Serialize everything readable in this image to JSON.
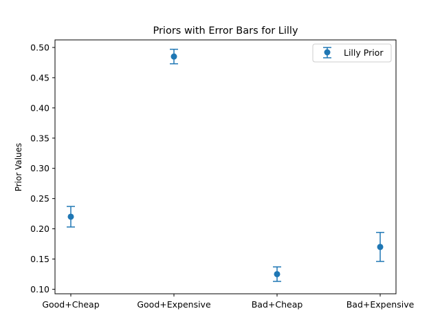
{
  "chart_data": {
    "type": "scatter",
    "title": "Priors with Error Bars for Lilly",
    "xlabel": "",
    "ylabel": "Prior Values",
    "categories": [
      "Good+Cheap",
      "Good+Expensive",
      "Bad+Cheap",
      "Bad+Expensive"
    ],
    "series": [
      {
        "name": "Lilly Prior",
        "values": [
          0.22,
          0.485,
          0.125,
          0.17
        ],
        "error_lower": [
          0.203,
          0.473,
          0.113,
          0.146
        ],
        "error_upper": [
          0.237,
          0.497,
          0.137,
          0.194
        ],
        "color": "#1f77b4"
      }
    ],
    "ylim": [
      0.0925,
      0.5125
    ],
    "yticks": [
      0.1,
      0.15,
      0.2,
      0.25,
      0.3,
      0.35,
      0.4,
      0.45,
      0.5
    ],
    "ytick_labels": [
      "0.10",
      "0.15",
      "0.20",
      "0.25",
      "0.30",
      "0.35",
      "0.40",
      "0.45",
      "0.50"
    ],
    "grid": false,
    "legend_position": "top-right"
  }
}
